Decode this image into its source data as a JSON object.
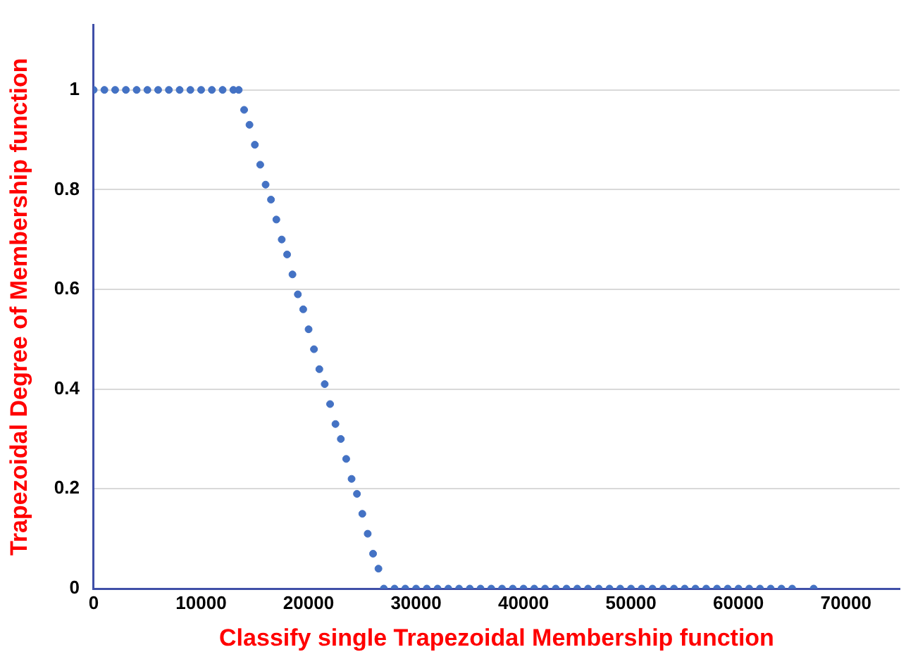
{
  "chart_data": {
    "type": "scatter",
    "xlabel": "Classify single Trapezoidal Membership function",
    "ylabel": "Trapezoidal Degree of Membership function",
    "xlim": [
      0,
      75000
    ],
    "xticks": [
      0,
      10000,
      20000,
      30000,
      40000,
      50000,
      60000,
      70000
    ],
    "ylim": [
      0,
      1.13
    ],
    "yticks": [
      0,
      0.2,
      0.4,
      0.6,
      0.8,
      1
    ],
    "grid": "y",
    "marker": "circle",
    "legend": false,
    "series": [
      {
        "color": "#4472c4",
        "x": [
          0,
          1000,
          2000,
          3000,
          4000,
          5000,
          6000,
          7000,
          8000,
          9000,
          10000,
          11000,
          12000,
          13000,
          13500,
          14000,
          14500,
          15000,
          15500,
          16000,
          16500,
          17000,
          17500,
          18000,
          18500,
          19000,
          19500,
          20000,
          20500,
          21000,
          21500,
          22000,
          22500,
          23000,
          23500,
          24000,
          24500,
          25000,
          25500,
          26000,
          26500,
          27000,
          28000,
          29000,
          30000,
          31000,
          32000,
          33000,
          34000,
          35000,
          36000,
          37000,
          38000,
          39000,
          40000,
          41000,
          42000,
          43000,
          44000,
          45000,
          46000,
          47000,
          48000,
          49000,
          50000,
          51000,
          52000,
          53000,
          54000,
          55000,
          56000,
          57000,
          58000,
          59000,
          60000,
          61000,
          62000,
          63000,
          64000,
          65000,
          67000
        ],
        "values": [
          1,
          1,
          1,
          1,
          1,
          1,
          1,
          1,
          1,
          1,
          1,
          1,
          1,
          1,
          1,
          0.96,
          0.93,
          0.89,
          0.85,
          0.81,
          0.78,
          0.74,
          0.7,
          0.67,
          0.63,
          0.59,
          0.56,
          0.52,
          0.48,
          0.44,
          0.41,
          0.37,
          0.33,
          0.3,
          0.26,
          0.22,
          0.19,
          0.15,
          0.11,
          0.07,
          0.04,
          0,
          0,
          0,
          0,
          0,
          0,
          0,
          0,
          0,
          0,
          0,
          0,
          0,
          0,
          0,
          0,
          0,
          0,
          0,
          0,
          0,
          0,
          0,
          0,
          0,
          0,
          0,
          0,
          0,
          0,
          0,
          0,
          0,
          0,
          0,
          0,
          0,
          0,
          0,
          0
        ]
      }
    ]
  }
}
